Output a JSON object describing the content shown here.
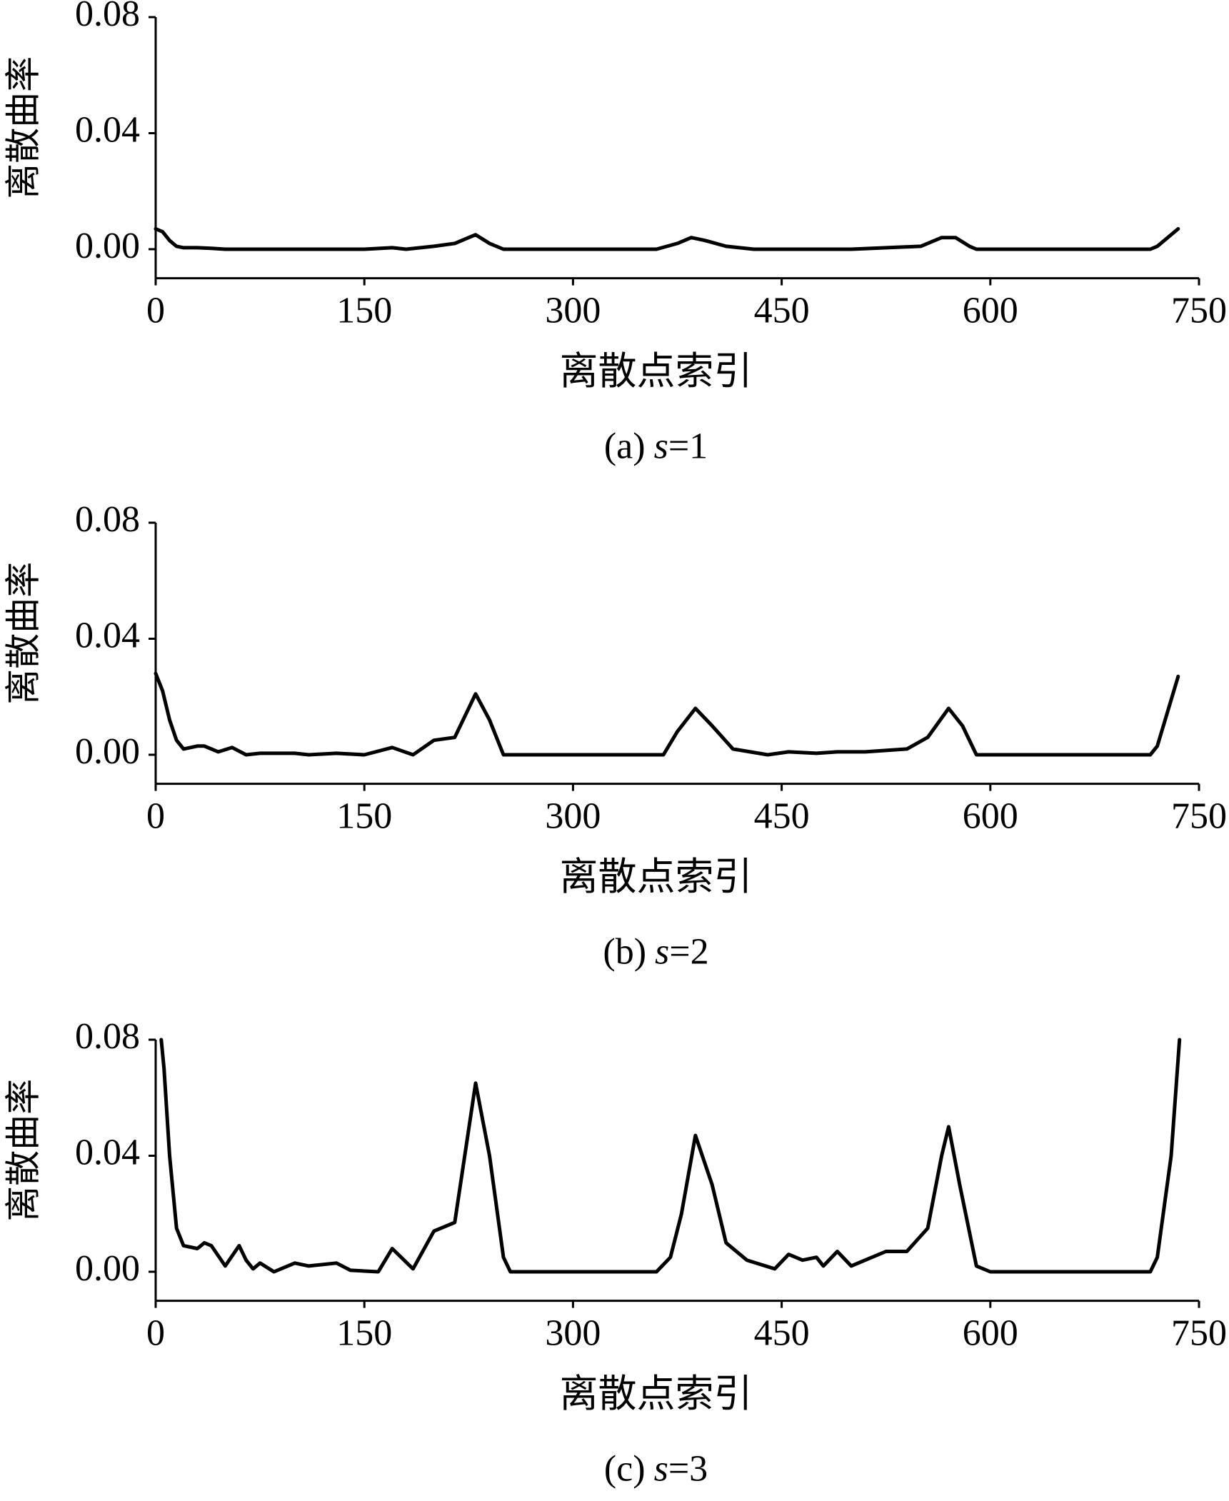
{
  "chart_data": [
    {
      "type": "line",
      "y_label": "离散曲率",
      "x_label": "离散点索引",
      "caption": {
        "label": "(a)",
        "variable": "s",
        "equals": "=1"
      },
      "color": "#000000",
      "xlim": [
        0,
        750
      ],
      "ylim": [
        -0.01,
        0.08
      ],
      "xticks": [
        0,
        150,
        300,
        450,
        600,
        750
      ],
      "yticks": [
        {
          "value": 0,
          "label": "0.00"
        },
        {
          "value": 0.04,
          "label": "0.04"
        },
        {
          "value": 0.08,
          "label": "0.08"
        }
      ],
      "x": [
        0,
        5,
        10,
        15,
        20,
        30,
        40,
        50,
        100,
        150,
        170,
        180,
        200,
        215,
        225,
        230,
        240,
        250,
        300,
        360,
        375,
        385,
        395,
        410,
        430,
        500,
        550,
        565,
        575,
        585,
        590,
        650,
        715,
        720,
        730,
        735
      ],
      "values": [
        0.007,
        0.006,
        0.003,
        0.001,
        0.0005,
        0.0005,
        0.0003,
        0,
        0,
        0,
        0.0005,
        0,
        0.001,
        0.002,
        0.004,
        0.005,
        0.002,
        0,
        0,
        0,
        0.002,
        0.004,
        0.003,
        0.001,
        0,
        0,
        0.001,
        0.004,
        0.004,
        0.001,
        0,
        0,
        0,
        0.001,
        0.005,
        0.007
      ]
    },
    {
      "type": "line",
      "y_label": "离散曲率",
      "x_label": "离散点索引",
      "caption": {
        "label": "(b)",
        "variable": "s",
        "equals": "=2"
      },
      "color": "#000000",
      "xlim": [
        0,
        750
      ],
      "ylim": [
        -0.01,
        0.08
      ],
      "xticks": [
        0,
        150,
        300,
        450,
        600,
        750
      ],
      "yticks": [
        {
          "value": 0,
          "label": "0.00"
        },
        {
          "value": 0.04,
          "label": "0.04"
        },
        {
          "value": 0.08,
          "label": "0.08"
        }
      ],
      "x": [
        0,
        5,
        10,
        15,
        20,
        30,
        35,
        45,
        55,
        65,
        75,
        100,
        110,
        130,
        150,
        170,
        185,
        200,
        215,
        230,
        240,
        250,
        300,
        365,
        375,
        388,
        400,
        415,
        440,
        455,
        475,
        490,
        510,
        540,
        555,
        570,
        580,
        590,
        650,
        715,
        720,
        735
      ],
      "values": [
        0.028,
        0.022,
        0.012,
        0.005,
        0.002,
        0.003,
        0.003,
        0.001,
        0.0025,
        0,
        0.0005,
        0.0005,
        0,
        0.0005,
        0,
        0.0025,
        0,
        0.005,
        0.006,
        0.021,
        0.012,
        0,
        0,
        0,
        0.008,
        0.016,
        0.01,
        0.002,
        0,
        0.001,
        0.0005,
        0.001,
        0.001,
        0.002,
        0.006,
        0.016,
        0.01,
        0,
        0,
        0,
        0.003,
        0.027
      ]
    },
    {
      "type": "line",
      "y_label": "离散曲率",
      "x_label": "离散点索引",
      "caption": {
        "label": "(c)",
        "variable": "s",
        "equals": "=3"
      },
      "color": "#000000",
      "xlim": [
        0,
        750
      ],
      "ylim": [
        -0.01,
        0.08
      ],
      "xticks": [
        0,
        150,
        300,
        450,
        600,
        750
      ],
      "yticks": [
        {
          "value": 0,
          "label": "0.00"
        },
        {
          "value": 0.04,
          "label": "0.04"
        },
        {
          "value": 0.08,
          "label": "0.08"
        }
      ],
      "x": [
        4,
        6,
        10,
        15,
        20,
        30,
        35,
        40,
        50,
        60,
        65,
        70,
        75,
        85,
        100,
        110,
        130,
        140,
        160,
        170,
        185,
        200,
        215,
        230,
        240,
        250,
        255,
        300,
        360,
        370,
        378,
        388,
        400,
        410,
        425,
        445,
        455,
        465,
        475,
        480,
        490,
        500,
        510,
        525,
        540,
        555,
        565,
        570,
        578,
        590,
        600,
        650,
        715,
        720,
        730,
        736
      ],
      "values": [
        0.08,
        0.07,
        0.04,
        0.015,
        0.009,
        0.008,
        0.01,
        0.009,
        0.002,
        0.009,
        0.004,
        0.001,
        0.003,
        0,
        0.003,
        0.002,
        0.003,
        0.0005,
        0,
        0.008,
        0.001,
        0.014,
        0.017,
        0.065,
        0.04,
        0.005,
        0,
        0,
        0,
        0.005,
        0.02,
        0.047,
        0.03,
        0.01,
        0.004,
        0.001,
        0.006,
        0.004,
        0.005,
        0.002,
        0.007,
        0.002,
        0.004,
        0.007,
        0.007,
        0.015,
        0.04,
        0.05,
        0.03,
        0.002,
        0,
        0,
        0,
        0.005,
        0.04,
        0.08
      ]
    }
  ]
}
